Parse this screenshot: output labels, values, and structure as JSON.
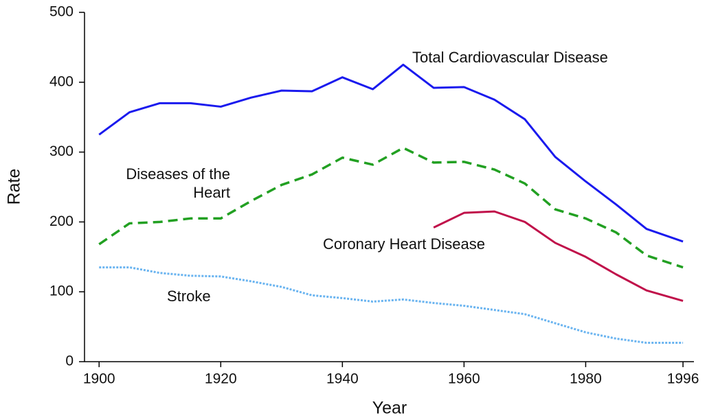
{
  "chart_data": {
    "type": "line",
    "xlabel": "Year",
    "ylabel": "Rate",
    "x": [
      1900,
      1905,
      1910,
      1915,
      1920,
      1925,
      1930,
      1935,
      1940,
      1945,
      1950,
      1955,
      1960,
      1965,
      1970,
      1975,
      1980,
      1985,
      1990,
      1996
    ],
    "series": [
      {
        "name": "Total Cardiovascular Disease",
        "color": "#1a1aee",
        "dash": "solid",
        "values": [
          325,
          357,
          370,
          370,
          365,
          378,
          388,
          387,
          407,
          390,
          425,
          392,
          393,
          375,
          347,
          293,
          258,
          225,
          190,
          172
        ]
      },
      {
        "name": "Diseases of the Heart",
        "color": "#22a022",
        "dash": "dashed",
        "values": [
          168,
          198,
          200,
          205,
          205,
          230,
          253,
          268,
          292,
          282,
          306,
          285,
          286,
          275,
          255,
          218,
          205,
          185,
          152,
          135
        ]
      },
      {
        "name": "Coronary Heart Disease",
        "color": "#c0104a",
        "dash": "solid",
        "values": [
          null,
          null,
          null,
          null,
          null,
          null,
          null,
          null,
          null,
          null,
          null,
          192,
          213,
          215,
          200,
          170,
          150,
          125,
          102,
          87
        ]
      },
      {
        "name": "Stroke",
        "color": "#6ab4f0",
        "dash": "dotted",
        "values": [
          135,
          135,
          127,
          123,
          122,
          115,
          107,
          95,
          91,
          86,
          89,
          84,
          80,
          74,
          68,
          55,
          42,
          33,
          27,
          27
        ]
      }
    ],
    "xlim": [
      1897.6,
      1997.8
    ],
    "xticks": [
      1900,
      1920,
      1940,
      1960,
      1980,
      1996
    ],
    "ylim": [
      0,
      500
    ],
    "yticks": [
      0,
      100,
      200,
      300,
      400,
      500
    ]
  }
}
